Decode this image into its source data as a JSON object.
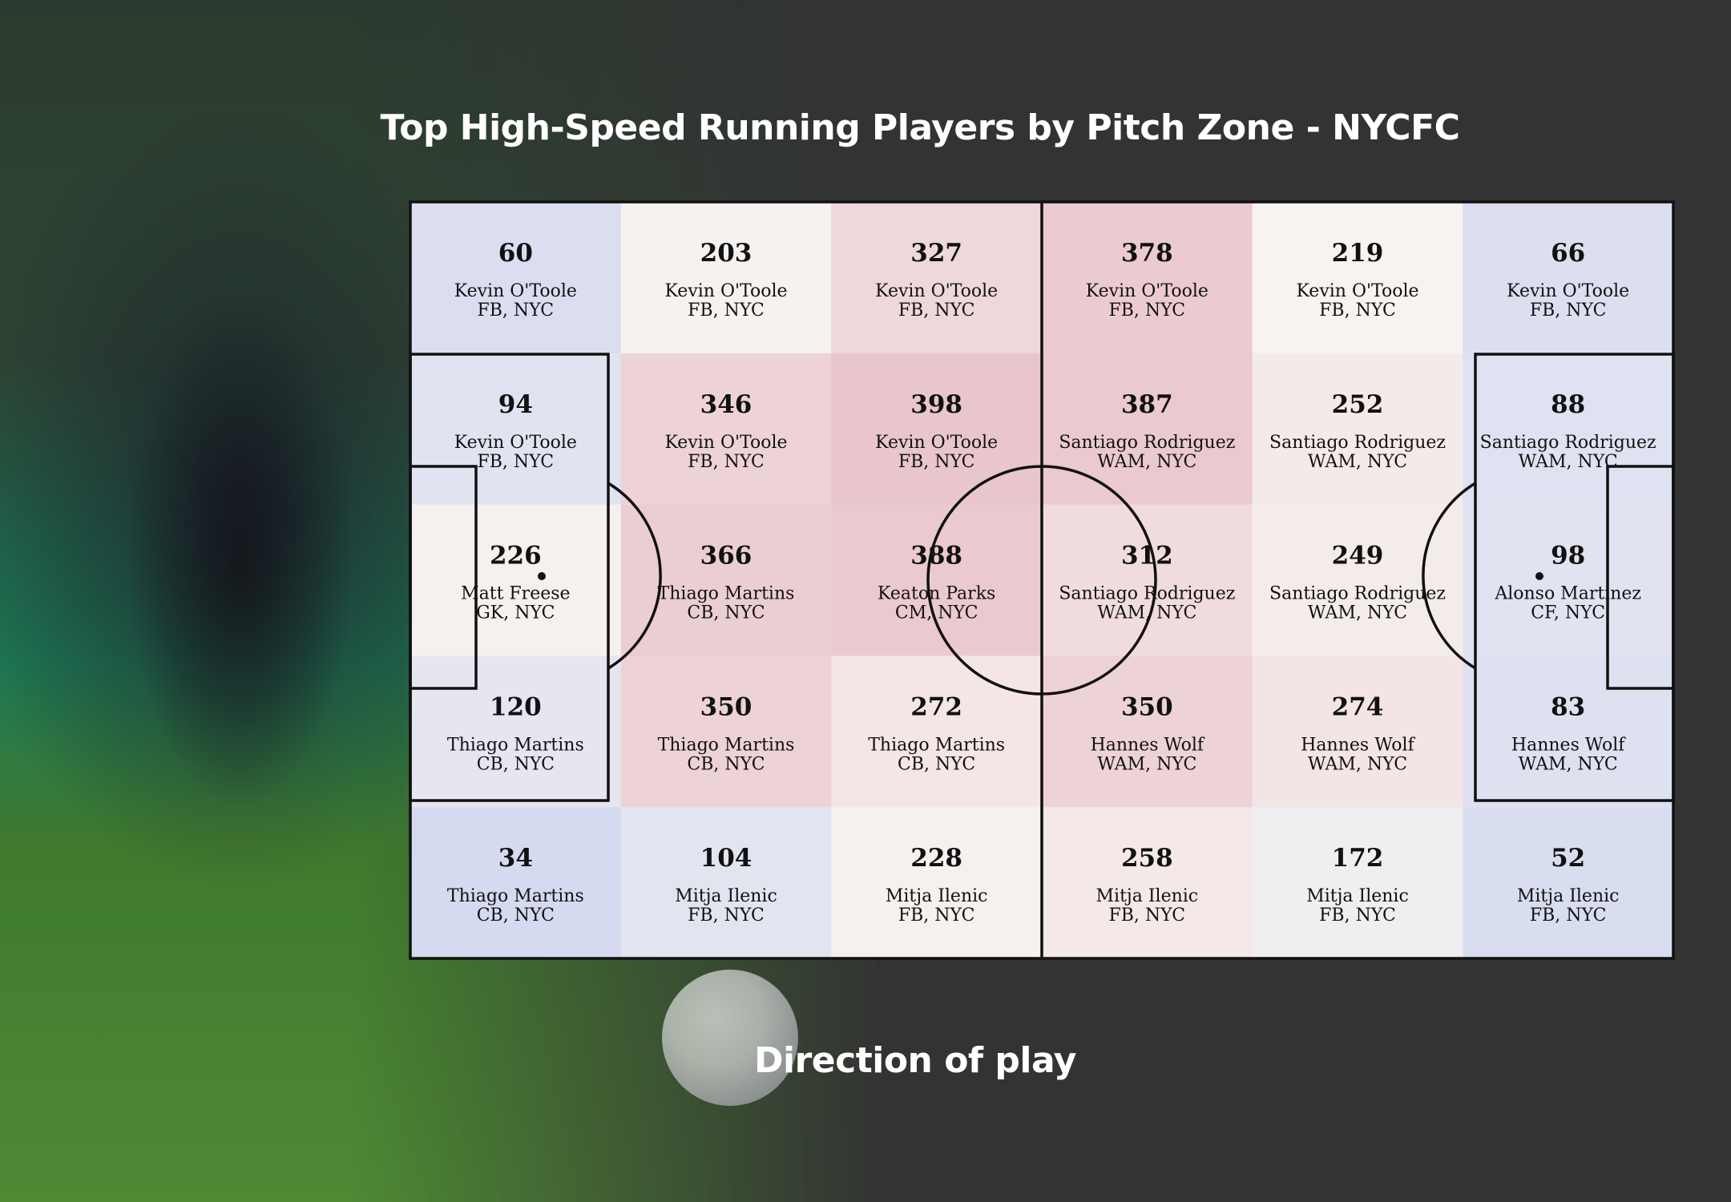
{
  "title": "Top High-Speed Running Players by Pitch Zone - NYCFC",
  "direction_label": "Direction of play",
  "colors": {
    "background": "#333333",
    "low": "#d5daf0",
    "mid": "#f7f4f0",
    "high": "#e9c6cd",
    "text": "#ffffff"
  },
  "chart_data": {
    "type": "heatmap",
    "title": "Top High-Speed Running Players by Pitch Zone - NYCFC",
    "xlabel": "",
    "ylabel": "",
    "rows": 5,
    "cols": 6,
    "color_range": [
      34,
      398
    ],
    "zones": [
      {
        "row": 0,
        "col": 0,
        "value": 60,
        "player": "Kevin O'Toole",
        "role": "FB, NYC"
      },
      {
        "row": 0,
        "col": 1,
        "value": 203,
        "player": "Kevin O'Toole",
        "role": "FB, NYC"
      },
      {
        "row": 0,
        "col": 2,
        "value": 327,
        "player": "Kevin O'Toole",
        "role": "FB, NYC"
      },
      {
        "row": 0,
        "col": 3,
        "value": 378,
        "player": "Kevin O'Toole",
        "role": "FB, NYC"
      },
      {
        "row": 0,
        "col": 4,
        "value": 219,
        "player": "Kevin O'Toole",
        "role": "FB, NYC"
      },
      {
        "row": 0,
        "col": 5,
        "value": 66,
        "player": "Kevin O'Toole",
        "role": "FB, NYC"
      },
      {
        "row": 1,
        "col": 0,
        "value": 94,
        "player": "Kevin O'Toole",
        "role": "FB, NYC"
      },
      {
        "row": 1,
        "col": 1,
        "value": 346,
        "player": "Kevin O'Toole",
        "role": "FB, NYC"
      },
      {
        "row": 1,
        "col": 2,
        "value": 398,
        "player": "Kevin O'Toole",
        "role": "FB, NYC"
      },
      {
        "row": 1,
        "col": 3,
        "value": 387,
        "player": "Santiago Rodriguez",
        "role": "WAM, NYC"
      },
      {
        "row": 1,
        "col": 4,
        "value": 252,
        "player": "Santiago Rodriguez",
        "role": "WAM, NYC"
      },
      {
        "row": 1,
        "col": 5,
        "value": 88,
        "player": "Santiago Rodriguez",
        "role": "WAM, NYC"
      },
      {
        "row": 2,
        "col": 0,
        "value": 226,
        "player": "Matt Freese",
        "role": "GK, NYC"
      },
      {
        "row": 2,
        "col": 1,
        "value": 366,
        "player": "Thiago Martins",
        "role": "CB, NYC"
      },
      {
        "row": 2,
        "col": 2,
        "value": 388,
        "player": "Keaton Parks",
        "role": "CM, NYC"
      },
      {
        "row": 2,
        "col": 3,
        "value": 312,
        "player": "Santiago Rodriguez",
        "role": "WAM, NYC"
      },
      {
        "row": 2,
        "col": 4,
        "value": 249,
        "player": "Santiago Rodriguez",
        "role": "WAM, NYC"
      },
      {
        "row": 2,
        "col": 5,
        "value": 98,
        "player": "Alonso Martinez",
        "role": "CF, NYC"
      },
      {
        "row": 3,
        "col": 0,
        "value": 120,
        "player": "Thiago Martins",
        "role": "CB, NYC"
      },
      {
        "row": 3,
        "col": 1,
        "value": 350,
        "player": "Thiago Martins",
        "role": "CB, NYC"
      },
      {
        "row": 3,
        "col": 2,
        "value": 272,
        "player": "Thiago Martins",
        "role": "CB, NYC"
      },
      {
        "row": 3,
        "col": 3,
        "value": 350,
        "player": "Hannes Wolf",
        "role": "WAM, NYC"
      },
      {
        "row": 3,
        "col": 4,
        "value": 274,
        "player": "Hannes Wolf",
        "role": "WAM, NYC"
      },
      {
        "row": 3,
        "col": 5,
        "value": 83,
        "player": "Hannes Wolf",
        "role": "WAM, NYC"
      },
      {
        "row": 4,
        "col": 0,
        "value": 34,
        "player": "Thiago Martins",
        "role": "CB, NYC"
      },
      {
        "row": 4,
        "col": 1,
        "value": 104,
        "player": "Mitja Ilenic",
        "role": "FB, NYC"
      },
      {
        "row": 4,
        "col": 2,
        "value": 228,
        "player": "Mitja Ilenic",
        "role": "FB, NYC"
      },
      {
        "row": 4,
        "col": 3,
        "value": 258,
        "player": "Mitja Ilenic",
        "role": "FB, NYC"
      },
      {
        "row": 4,
        "col": 4,
        "value": 172,
        "player": "Mitja Ilenic",
        "role": "FB, NYC"
      },
      {
        "row": 4,
        "col": 5,
        "value": 52,
        "player": "Mitja Ilenic",
        "role": "FB, NYC"
      }
    ]
  }
}
